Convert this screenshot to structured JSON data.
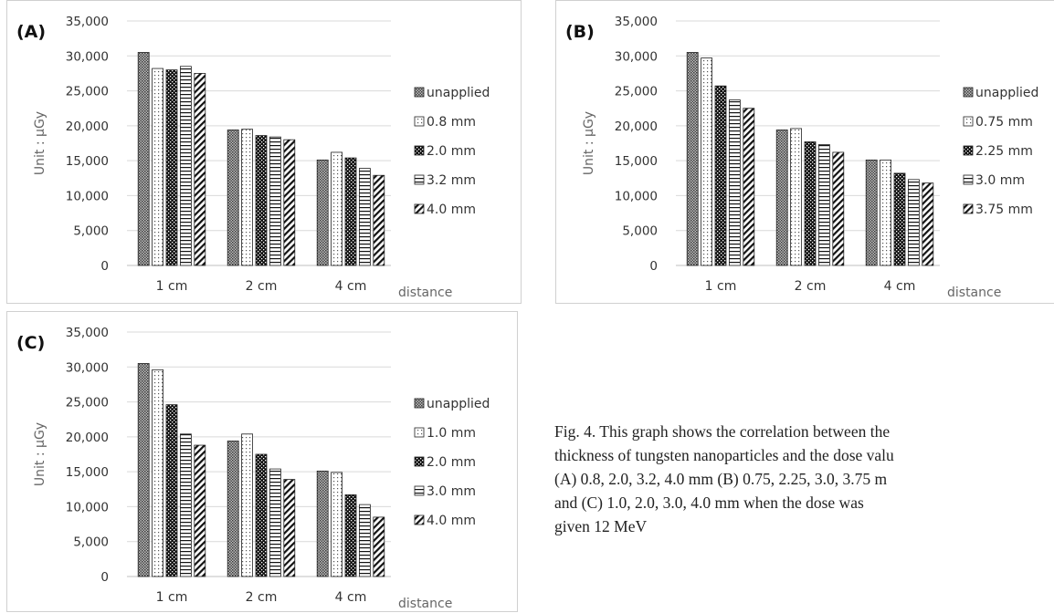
{
  "chart_data": [
    {
      "type": "bar",
      "panel_label": "(A)",
      "categories": [
        "1 cm",
        "2 cm",
        "4 cm"
      ],
      "xlabel": "distance",
      "ylabel": "Unit : µGy",
      "ylim": [
        0,
        35000
      ],
      "yticks": [
        "0",
        "5,000",
        "10,000",
        "15,000",
        "20,000",
        "25,000",
        "30,000",
        "35,000"
      ],
      "legend_position": "right",
      "grid": true,
      "series": [
        {
          "name": "unapplied",
          "pattern": "dense",
          "values": [
            30500,
            19400,
            15100
          ]
        },
        {
          "name": "0.8 mm",
          "pattern": "dots",
          "values": [
            28200,
            19500,
            16200
          ]
        },
        {
          "name": "2.0 mm",
          "pattern": "checker",
          "values": [
            28000,
            18600,
            15400
          ]
        },
        {
          "name": "3.2 mm",
          "pattern": "hlines",
          "values": [
            28500,
            18400,
            13900
          ]
        },
        {
          "name": "4.0 mm",
          "pattern": "diag",
          "values": [
            27500,
            18000,
            12900
          ]
        }
      ]
    },
    {
      "type": "bar",
      "panel_label": "(B)",
      "categories": [
        "1 cm",
        "2 cm",
        "4 cm"
      ],
      "xlabel": "distance",
      "ylabel": "Unit : µGy",
      "ylim": [
        0,
        35000
      ],
      "yticks": [
        "0",
        "5,000",
        "10,000",
        "15,000",
        "20,000",
        "25,000",
        "30,000",
        "35,000"
      ],
      "legend_position": "right",
      "grid": true,
      "series": [
        {
          "name": "unapplied",
          "pattern": "dense",
          "values": [
            30500,
            19400,
            15100
          ]
        },
        {
          "name": "0.75 mm",
          "pattern": "dots",
          "values": [
            29700,
            19600,
            15100
          ]
        },
        {
          "name": "2.25 mm",
          "pattern": "checker",
          "values": [
            25700,
            17700,
            13200
          ]
        },
        {
          "name": "3.0 mm",
          "pattern": "hlines",
          "values": [
            23700,
            17300,
            12300
          ]
        },
        {
          "name": "3.75 mm",
          "pattern": "diag",
          "values": [
            22500,
            16200,
            11800
          ]
        }
      ]
    },
    {
      "type": "bar",
      "panel_label": "(C)",
      "categories": [
        "1 cm",
        "2 cm",
        "4 cm"
      ],
      "xlabel": "distance",
      "ylabel": "Unit : µGy",
      "ylim": [
        0,
        35000
      ],
      "yticks": [
        "0",
        "5,000",
        "10,000",
        "15,000",
        "20,000",
        "25,000",
        "30,000",
        "35,000"
      ],
      "legend_position": "right",
      "grid": true,
      "series": [
        {
          "name": "unapplied",
          "pattern": "dense",
          "values": [
            30500,
            19400,
            15100
          ]
        },
        {
          "name": "1.0 mm",
          "pattern": "dots",
          "values": [
            29600,
            20400,
            14900
          ]
        },
        {
          "name": "2.0 mm",
          "pattern": "checker",
          "values": [
            24600,
            17500,
            11700
          ]
        },
        {
          "name": "3.0 mm",
          "pattern": "hlines",
          "values": [
            20400,
            15400,
            10300
          ]
        },
        {
          "name": "4.0 mm",
          "pattern": "diag",
          "values": [
            18800,
            13900,
            8500
          ]
        }
      ]
    }
  ],
  "caption": {
    "lines": [
      "Fig. 4. This graph shows the correlation between the",
      "thickness of tungsten nanoparticles and the dose valu",
      "(A) 0.8, 2.0, 3.2, 4.0 mm (B) 0.75, 2.25, 3.0, 3.75 m",
      "and (C) 1.0, 2.0, 3.0, 4.0 mm when the dose was",
      "given 12 MeV"
    ]
  }
}
